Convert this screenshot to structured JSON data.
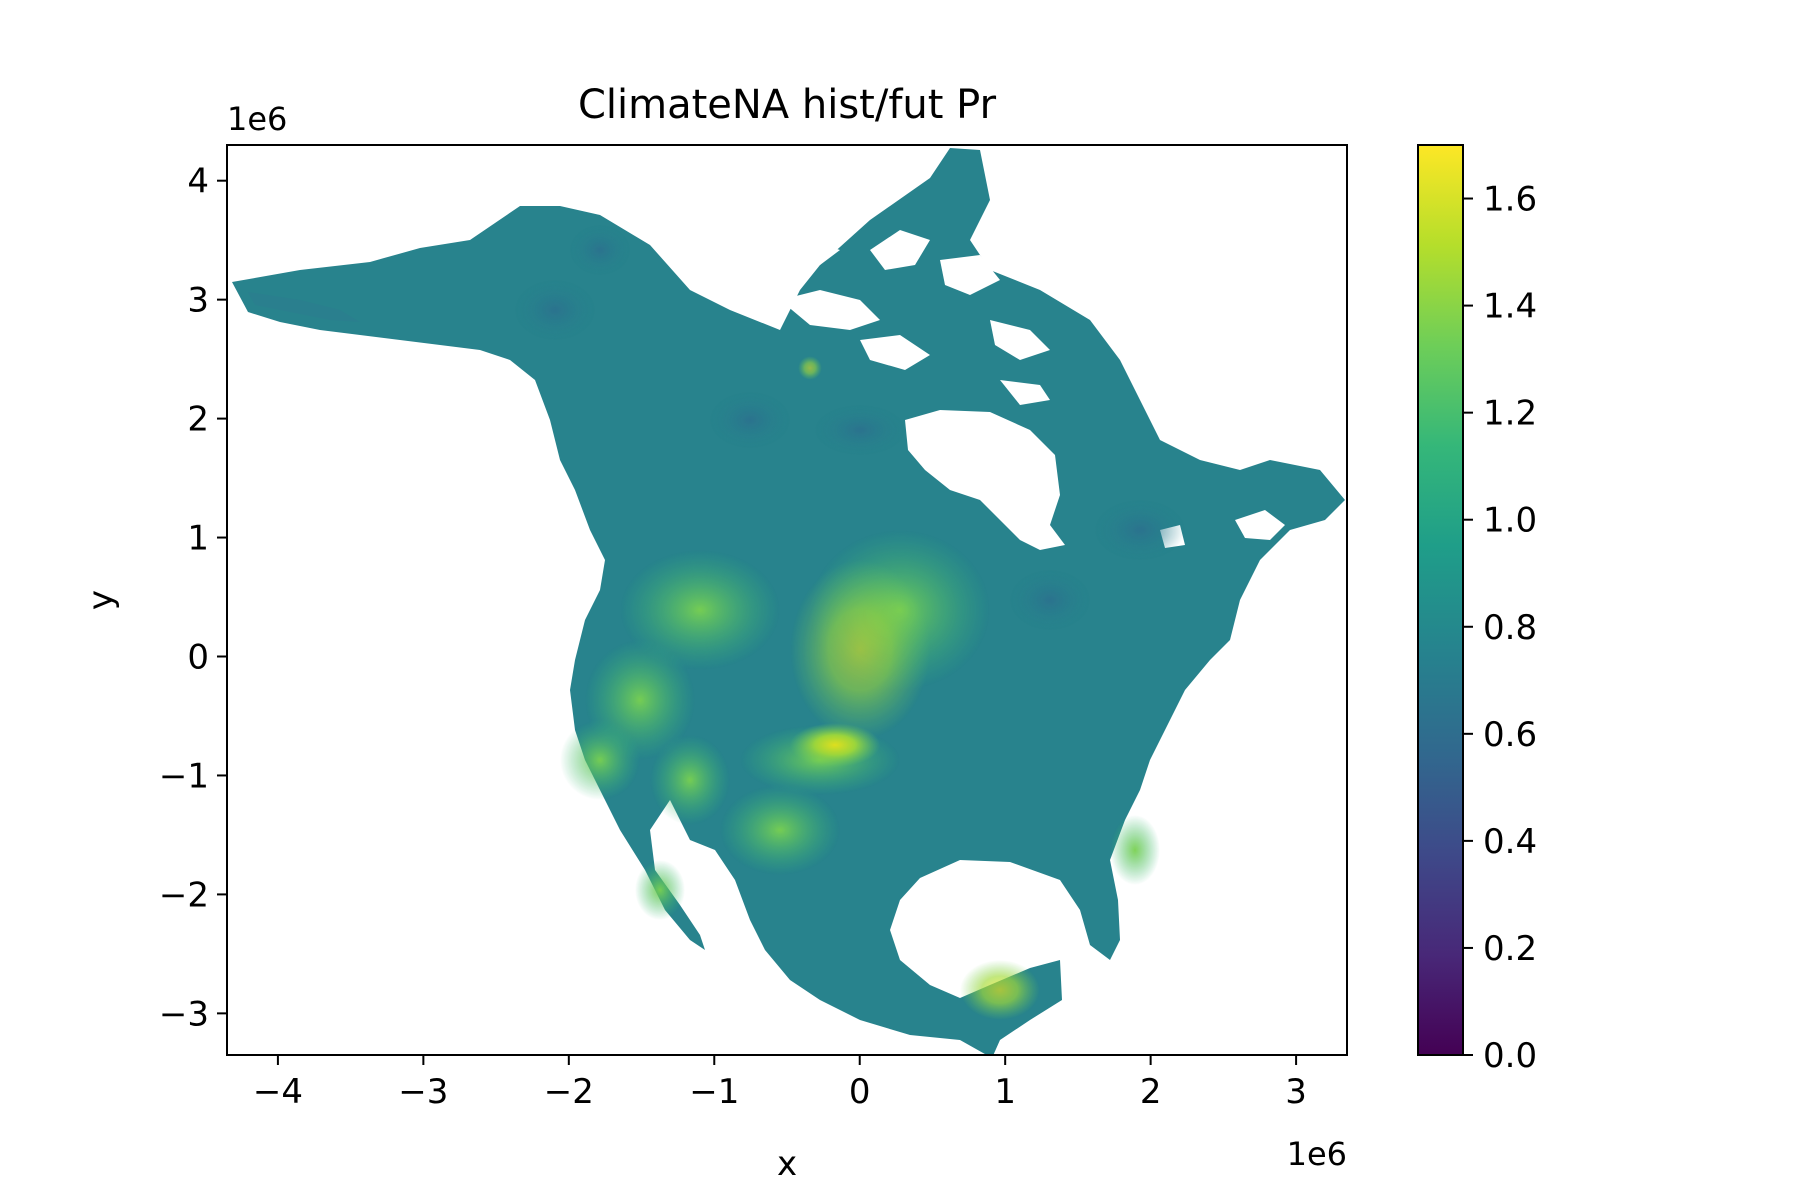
{
  "chart_data": {
    "type": "heatmap",
    "title": "ClimateNA hist/fut Pr",
    "xlabel": "x",
    "ylabel": "y",
    "x_offset_label": "1e6",
    "y_offset_label": "1e6",
    "xlim": [
      -4.35,
      3.35
    ],
    "ylim": [
      -3.35,
      4.3
    ],
    "x_ticks": [
      -4,
      -3,
      -2,
      -1,
      0,
      1,
      2,
      3
    ],
    "x_tick_labels": [
      "−4",
      "−3",
      "−2",
      "−1",
      "0",
      "1",
      "2",
      "3"
    ],
    "y_ticks": [
      -3,
      -2,
      -1,
      0,
      1,
      2,
      3,
      4
    ],
    "y_tick_labels": [
      "−3",
      "−2",
      "−1",
      "0",
      "1",
      "2",
      "3",
      "4"
    ],
    "colorbar": {
      "colormap": "viridis",
      "range": [
        0.0,
        1.7
      ],
      "ticks": [
        0.0,
        0.2,
        0.4,
        0.6,
        0.8,
        1.0,
        1.2,
        1.4,
        1.6
      ],
      "tick_labels": [
        "0.0",
        "0.2",
        "0.4",
        "0.6",
        "0.8",
        "1.0",
        "1.2",
        "1.4",
        "1.6"
      ],
      "colors": [
        "#440154",
        "#482878",
        "#3e4989",
        "#31688e",
        "#26828e",
        "#1f9e89",
        "#35b779",
        "#6ece58",
        "#b5de2b",
        "#fde725"
      ]
    },
    "field_summary": {
      "typical_value": 0.9,
      "low_regions_value": 0.7,
      "high_regions_value": 1.35,
      "peak_value": 1.6
    },
    "grid": false
  }
}
